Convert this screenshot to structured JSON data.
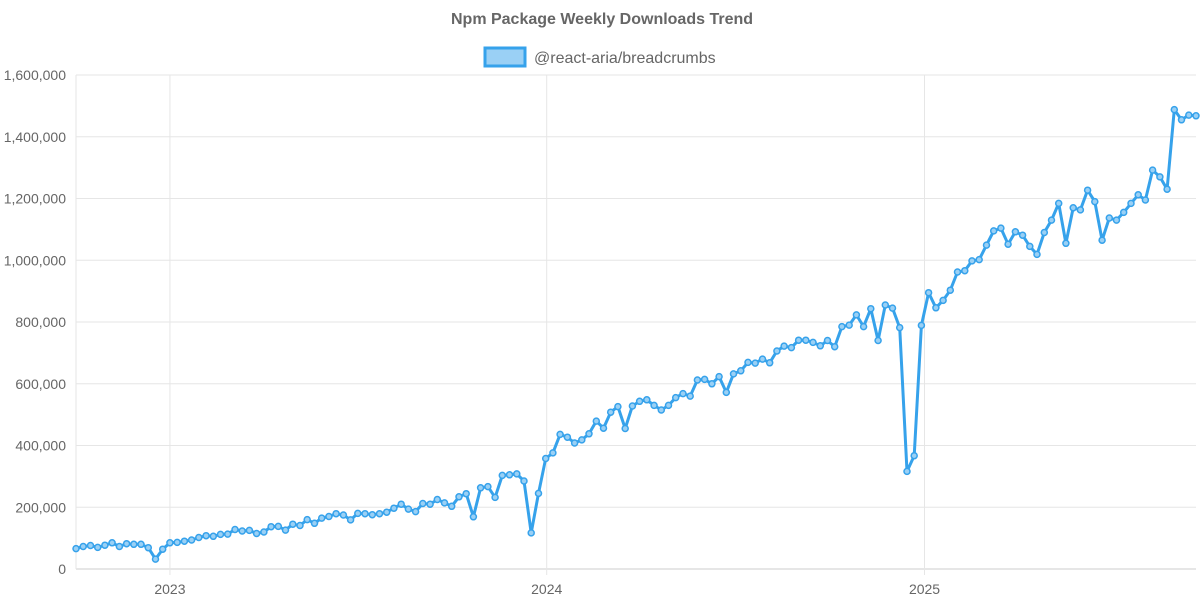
{
  "chart_data": {
    "type": "line",
    "title": "Npm Package Weekly Downloads Trend",
    "xlabel": "",
    "ylabel": "",
    "x_range": [
      "2022-10-02",
      "2025-09-21"
    ],
    "ylim": [
      0,
      1600000
    ],
    "y_ticks": [
      0,
      200000,
      400000,
      600000,
      800000,
      1000000,
      1200000,
      1400000,
      1600000
    ],
    "y_tick_labels": [
      "0",
      "200,000",
      "400,000",
      "600,000",
      "800,000",
      "1,000,000",
      "1,200,000",
      "1,400,000",
      "1,600,000"
    ],
    "x_ticks": [
      {
        "date": "2023-01-01",
        "label": "2023"
      },
      {
        "date": "2024-01-01",
        "label": "2024"
      },
      {
        "date": "2025-01-01",
        "label": "2025"
      }
    ],
    "grid": true,
    "legend_position": "top",
    "series": [
      {
        "name": "@react-aria/breadcrumbs",
        "color": "#36a2eb",
        "fill": "#9ad0f5",
        "start_date": "2022-10-02",
        "interval_days": 7,
        "values": [
          66000,
          73000,
          76000,
          70000,
          77000,
          85000,
          73000,
          82000,
          80000,
          80000,
          69000,
          32000,
          64000,
          85000,
          86000,
          90000,
          94000,
          102000,
          108000,
          106000,
          112000,
          113000,
          128000,
          123000,
          125000,
          115000,
          120000,
          137000,
          138000,
          126000,
          145000,
          141000,
          160000,
          148000,
          165000,
          170000,
          179000,
          175000,
          159000,
          180000,
          179000,
          176000,
          179000,
          184000,
          197000,
          210000,
          194000,
          186000,
          212000,
          210000,
          225000,
          214000,
          203000,
          234000,
          244000,
          169000,
          263000,
          267000,
          232000,
          303000,
          305000,
          308000,
          285000,
          117000,
          245000,
          358000,
          376000,
          436000,
          427000,
          408000,
          418000,
          438000,
          479000,
          456000,
          508000,
          526000,
          455000,
          528000,
          543000,
          548000,
          530000,
          515000,
          530000,
          555000,
          568000,
          560000,
          612000,
          614000,
          600000,
          623000,
          572000,
          632000,
          642000,
          669000,
          667000,
          680000,
          668000,
          706000,
          722000,
          717000,
          741000,
          741000,
          734000,
          723000,
          740000,
          720000,
          785000,
          790000,
          823000,
          785000,
          843000,
          740000,
          855000,
          845000,
          782000,
          316000,
          367000,
          789000,
          895000,
          846000,
          870000,
          903000,
          962000,
          966000,
          998000,
          1002000,
          1049000,
          1095000,
          1104000,
          1052000,
          1092000,
          1081000,
          1045000,
          1019000,
          1090000,
          1130000,
          1184000,
          1055000,
          1170000,
          1163000,
          1227000,
          1190000,
          1065000,
          1137000,
          1130000,
          1155000,
          1184000,
          1212000,
          1195000,
          1292000,
          1270000,
          1230000,
          1488000,
          1455000,
          1470000,
          1468000
        ]
      }
    ]
  }
}
